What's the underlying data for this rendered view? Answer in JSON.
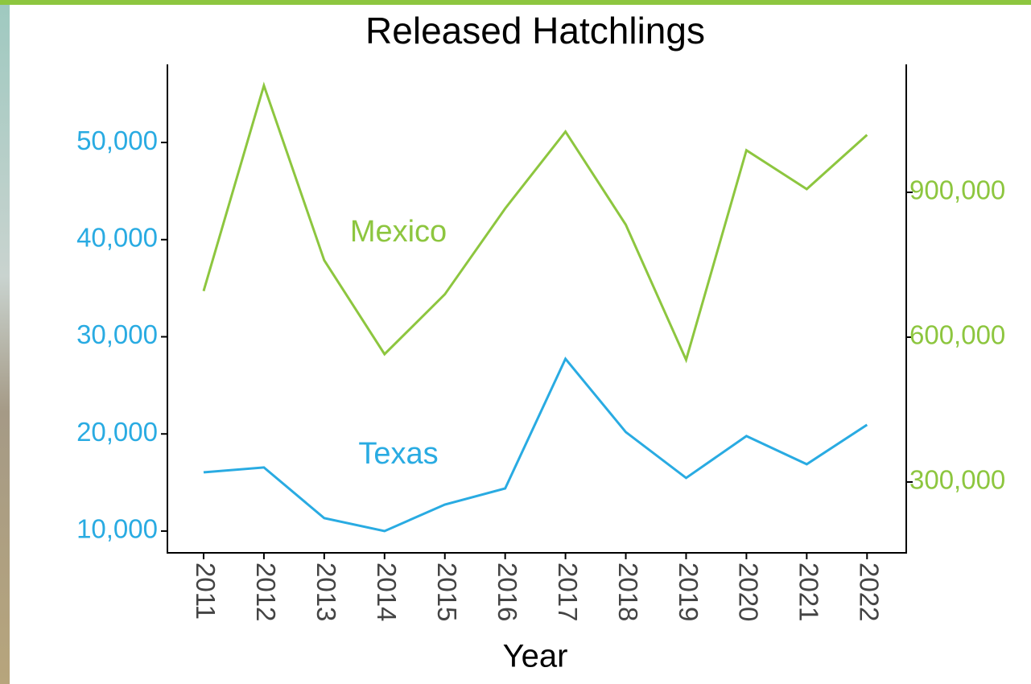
{
  "chart_data": {
    "type": "line",
    "title": "Released Hatchlings",
    "x_label": "Year",
    "x": [
      2011,
      2012,
      2013,
      2014,
      2015,
      2016,
      2017,
      2018,
      2019,
      2020,
      2021,
      2022
    ],
    "xlim": [
      2010.4,
      2022.65
    ],
    "xticks": [
      2011,
      2012,
      2013,
      2014,
      2015,
      2016,
      2017,
      2018,
      2019,
      2020,
      2021,
      2022
    ],
    "ylim": [
      7760,
      58040
    ],
    "yticks": [
      {
        "value": 10000,
        "label": "10,000"
      },
      {
        "value": 20000,
        "label": "20,000"
      },
      {
        "value": 30000,
        "label": "30,000"
      },
      {
        "value": 40000,
        "label": "40,000"
      },
      {
        "value": 50000,
        "label": "50,000"
      }
    ],
    "y2lim": [
      153300,
      1165000
    ],
    "y2ticks": [
      {
        "value": 300000,
        "label": "300,000"
      },
      {
        "value": 600000,
        "label": "600,000"
      },
      {
        "value": 900000,
        "label": "900,000"
      }
    ],
    "series": [
      {
        "name": "Mexico",
        "color": "#8dc63f",
        "axis": "y2",
        "values": [
          695500,
          1121200,
          759200,
          564800,
          688800,
          866500,
          1025700,
          832900,
          553100,
          987100,
          906700,
          1019000
        ]
      },
      {
        "name": "Texas",
        "color": "#29abe2",
        "values": [
          16050,
          16550,
          11330,
          10000,
          12730,
          14390,
          27730,
          20190,
          15470,
          19780,
          16880,
          20940
        ]
      }
    ]
  }
}
